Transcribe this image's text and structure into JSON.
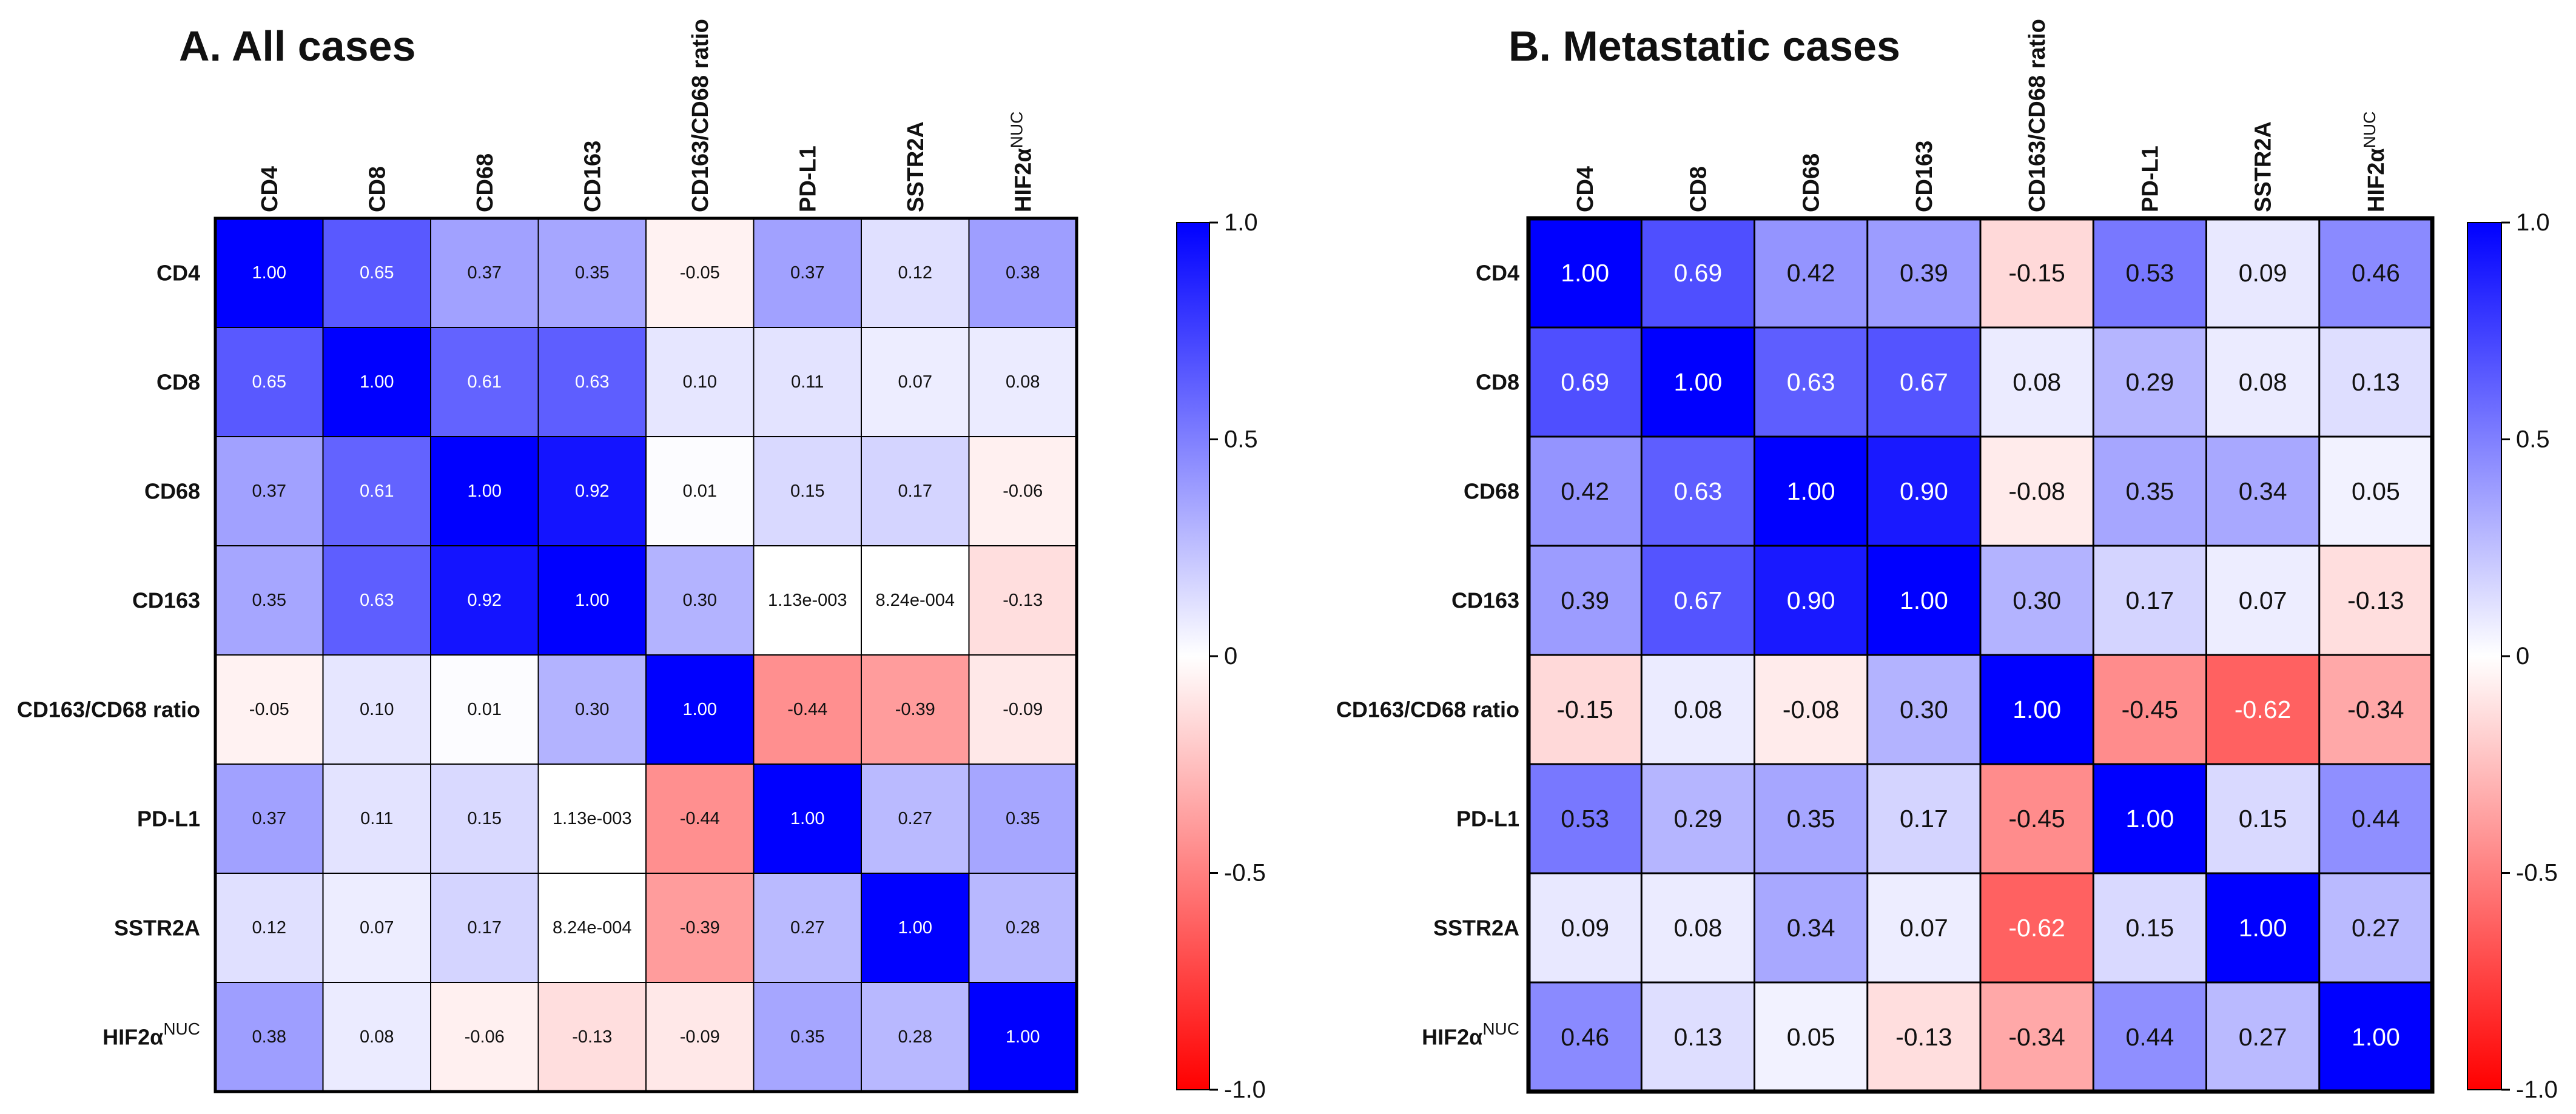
{
  "chart_data": [
    {
      "type": "heatmap",
      "title": "A. All cases",
      "labels": [
        "CD4",
        "CD8",
        "CD68",
        "CD163",
        "CD163/CD68 ratio",
        "PD-L1",
        "SSTR2A",
        "HIF2α"
      ],
      "label_superscripts": [
        "",
        "",
        "",
        "",
        "",
        "",
        "",
        "NUC"
      ],
      "values": [
        [
          1.0,
          0.65,
          0.37,
          0.35,
          -0.05,
          0.37,
          0.12,
          0.38
        ],
        [
          0.65,
          1.0,
          0.61,
          0.63,
          0.1,
          0.11,
          0.07,
          0.08
        ],
        [
          0.37,
          0.61,
          1.0,
          0.92,
          0.01,
          0.15,
          0.17,
          -0.06
        ],
        [
          0.35,
          0.63,
          0.92,
          1.0,
          0.3,
          0.00113,
          0.000824,
          -0.13
        ],
        [
          -0.05,
          0.1,
          0.01,
          0.3,
          1.0,
          -0.44,
          -0.39,
          -0.09
        ],
        [
          0.37,
          0.11,
          0.15,
          0.00113,
          -0.44,
          1.0,
          0.27,
          0.35
        ],
        [
          0.12,
          0.07,
          0.17,
          0.000824,
          -0.39,
          0.27,
          1.0,
          0.28
        ],
        [
          0.38,
          0.08,
          -0.06,
          -0.13,
          -0.09,
          0.35,
          0.28,
          1.0
        ]
      ],
      "cell_text": [
        [
          "1.00",
          "0.65",
          "0.37",
          "0.35",
          "-0.05",
          "0.37",
          "0.12",
          "0.38"
        ],
        [
          "0.65",
          "1.00",
          "0.61",
          "0.63",
          "0.10",
          "0.11",
          "0.07",
          "0.08"
        ],
        [
          "0.37",
          "0.61",
          "1.00",
          "0.92",
          "0.01",
          "0.15",
          "0.17",
          "-0.06"
        ],
        [
          "0.35",
          "0.63",
          "0.92",
          "1.00",
          "0.30",
          "1.13e-003",
          "8.24e-004",
          "-0.13"
        ],
        [
          "-0.05",
          "0.10",
          "0.01",
          "0.30",
          "1.00",
          "-0.44",
          "-0.39",
          "-0.09"
        ],
        [
          "0.37",
          "0.11",
          "0.15",
          "1.13e-003",
          "-0.44",
          "1.00",
          "0.27",
          "0.35"
        ],
        [
          "0.12",
          "0.07",
          "0.17",
          "8.24e-004",
          "-0.39",
          "0.27",
          "1.00",
          "0.28"
        ],
        [
          "0.38",
          "0.08",
          "-0.06",
          "-0.13",
          "-0.09",
          "0.35",
          "0.28",
          "1.00"
        ]
      ],
      "colorbar": {
        "range": [
          -1.0,
          1.0
        ],
        "ticks": [
          "1.0",
          "0.5",
          "0",
          "-0.5",
          "-1.0"
        ]
      }
    },
    {
      "type": "heatmap",
      "title": "B. Metastatic cases",
      "labels": [
        "CD4",
        "CD8",
        "CD68",
        "CD163",
        "CD163/CD68 ratio",
        "PD-L1",
        "SSTR2A",
        "HIF2α"
      ],
      "label_superscripts": [
        "",
        "",
        "",
        "",
        "",
        "",
        "",
        "NUC"
      ],
      "values": [
        [
          1.0,
          0.69,
          0.42,
          0.39,
          -0.15,
          0.53,
          0.09,
          0.46
        ],
        [
          0.69,
          1.0,
          0.63,
          0.67,
          0.08,
          0.29,
          0.08,
          0.13
        ],
        [
          0.42,
          0.63,
          1.0,
          0.9,
          -0.08,
          0.35,
          0.34,
          0.05
        ],
        [
          0.39,
          0.67,
          0.9,
          1.0,
          0.3,
          0.17,
          0.07,
          -0.13
        ],
        [
          -0.15,
          0.08,
          -0.08,
          0.3,
          1.0,
          -0.45,
          -0.62,
          -0.34
        ],
        [
          0.53,
          0.29,
          0.35,
          0.17,
          -0.45,
          1.0,
          0.15,
          0.44
        ],
        [
          0.09,
          0.08,
          0.34,
          0.07,
          -0.62,
          0.15,
          1.0,
          0.27
        ],
        [
          0.46,
          0.13,
          0.05,
          -0.13,
          -0.34,
          0.44,
          0.27,
          1.0
        ]
      ],
      "cell_text": [
        [
          "1.00",
          "0.69",
          "0.42",
          "0.39",
          "-0.15",
          "0.53",
          "0.09",
          "0.46"
        ],
        [
          "0.69",
          "1.00",
          "0.63",
          "0.67",
          "0.08",
          "0.29",
          "0.08",
          "0.13"
        ],
        [
          "0.42",
          "0.63",
          "1.00",
          "0.90",
          "-0.08",
          "0.35",
          "0.34",
          "0.05"
        ],
        [
          "0.39",
          "0.67",
          "0.90",
          "1.00",
          "0.30",
          "0.17",
          "0.07",
          "-0.13"
        ],
        [
          "-0.15",
          "0.08",
          "-0.08",
          "0.30",
          "1.00",
          "-0.45",
          "-0.62",
          "-0.34"
        ],
        [
          "0.53",
          "0.29",
          "0.35",
          "0.17",
          "-0.45",
          "1.00",
          "0.15",
          "0.44"
        ],
        [
          "0.09",
          "0.08",
          "0.34",
          "0.07",
          "-0.62",
          "0.15",
          "1.00",
          "0.27"
        ],
        [
          "0.46",
          "0.13",
          "0.05",
          "-0.13",
          "-0.34",
          "0.44",
          "0.27",
          "1.00"
        ]
      ],
      "colorbar": {
        "range": [
          -1.0,
          1.0
        ],
        "ticks": [
          "1.0",
          "0.5",
          "0",
          "-0.5",
          "-1.0"
        ]
      }
    }
  ]
}
